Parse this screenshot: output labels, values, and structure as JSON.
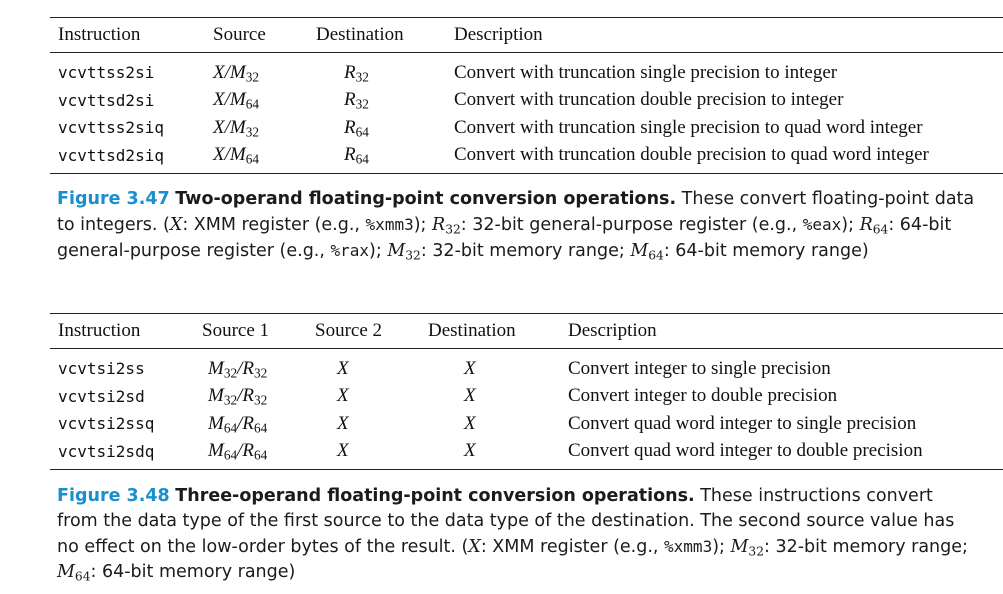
{
  "table1": {
    "headers": [
      "Instruction",
      "Source",
      "Destination",
      "Description"
    ],
    "rows": [
      {
        "instruction": "vcvttss2si",
        "source": {
          "base": "X/M",
          "sub": "32"
        },
        "destination": {
          "base": "R",
          "sub": "32"
        },
        "description": "Convert with truncation single precision to integer"
      },
      {
        "instruction": "vcvttsd2si",
        "source": {
          "base": "X/M",
          "sub": "64"
        },
        "destination": {
          "base": "R",
          "sub": "32"
        },
        "description": "Convert with truncation double precision to integer"
      },
      {
        "instruction": "vcvttss2siq",
        "source": {
          "base": "X/M",
          "sub": "32"
        },
        "destination": {
          "base": "R",
          "sub": "64"
        },
        "description": "Convert with truncation single precision to quad word integer"
      },
      {
        "instruction": "vcvttsd2siq",
        "source": {
          "base": "X/M",
          "sub": "64"
        },
        "destination": {
          "base": "R",
          "sub": "64"
        },
        "description": "Convert with truncation double precision to quad word integer"
      }
    ]
  },
  "caption1": {
    "label": "Figure 3.47",
    "title": "Two-operand floating-point conversion operations.",
    "parts": [
      {
        "t": " These convert floating-point data to integers. ("
      },
      {
        "i": "X"
      },
      {
        "t": ": XMM register (e.g., "
      },
      {
        "m": "%xmm3"
      },
      {
        "t": "); "
      },
      {
        "i": "R",
        "s": "32"
      },
      {
        "t": ": 32-bit general-purpose register (e.g., "
      },
      {
        "m": "%eax"
      },
      {
        "t": "); "
      },
      {
        "i": "R",
        "s": "64"
      },
      {
        "t": ": 64-bit general-purpose register (e.g., "
      },
      {
        "m": "%rax"
      },
      {
        "t": "); "
      },
      {
        "i": "M",
        "s": "32"
      },
      {
        "t": ": 32-bit memory range; "
      },
      {
        "i": "M",
        "s": "64"
      },
      {
        "t": ": 64-bit memory range)"
      }
    ]
  },
  "table2": {
    "headers": [
      "Instruction",
      "Source 1",
      "Source 2",
      "Destination",
      "Description"
    ],
    "rows": [
      {
        "instruction": "vcvtsi2ss",
        "source1": {
          "a": "M",
          "as": "32",
          "b": "R",
          "bs": "32"
        },
        "source2": "X",
        "destination": "X",
        "description": "Convert integer to single precision"
      },
      {
        "instruction": "vcvtsi2sd",
        "source1": {
          "a": "M",
          "as": "32",
          "b": "R",
          "bs": "32"
        },
        "source2": "X",
        "destination": "X",
        "description": "Convert integer to double precision"
      },
      {
        "instruction": "vcvtsi2ssq",
        "source1": {
          "a": "M",
          "as": "64",
          "b": "R",
          "bs": "64"
        },
        "source2": "X",
        "destination": "X",
        "description": "Convert quad word integer to single precision"
      },
      {
        "instruction": "vcvtsi2sdq",
        "source1": {
          "a": "M",
          "as": "64",
          "b": "R",
          "bs": "64"
        },
        "source2": "X",
        "destination": "X",
        "description": "Convert quad word integer to double precision"
      }
    ]
  },
  "caption2": {
    "label": "Figure 3.48",
    "title": "Three-operand floating-point conversion operations.",
    "parts": [
      {
        "t": " These instructions convert from the data type of the first source to the data type of the destination. The second source value has no effect on the low-order bytes of the result. ("
      },
      {
        "i": "X"
      },
      {
        "t": ": XMM register (e.g., "
      },
      {
        "m": "%xmm3"
      },
      {
        "t": "); "
      },
      {
        "i": "M",
        "s": "32"
      },
      {
        "t": ": 32-bit memory range; "
      },
      {
        "i": "M",
        "s": "64"
      },
      {
        "t": ": 64-bit memory range)"
      }
    ]
  }
}
